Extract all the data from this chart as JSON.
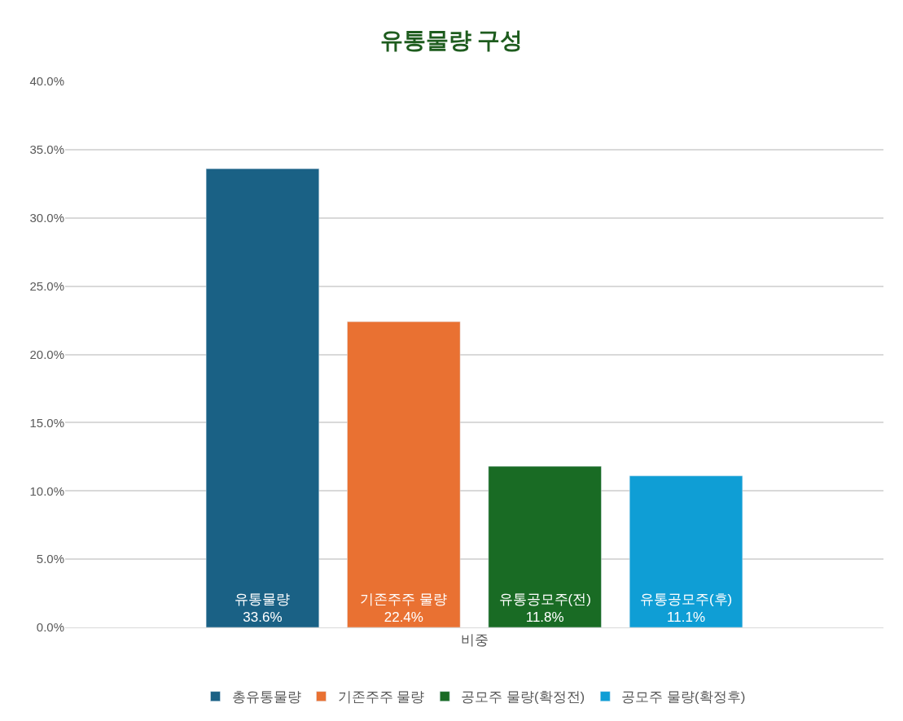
{
  "chart_data": {
    "type": "bar",
    "title": "유통물량 구성",
    "categories": [
      "비중"
    ],
    "series": [
      {
        "name": "총유통물량",
        "color": "#1a6185",
        "values": [
          33.6
        ],
        "value_labels": [
          "유통물량\n33.6%"
        ]
      },
      {
        "name": "기존주주 물량",
        "color": "#e97132",
        "values": [
          22.4
        ],
        "value_labels": [
          "기존주주 물량\n22.4%"
        ]
      },
      {
        "name": "공모주 물량(확정전)",
        "color": "#196b24",
        "values": [
          11.8
        ],
        "value_labels": [
          "유통공모주(전)\n11.8%"
        ]
      },
      {
        "name": "공모주 물량(확정후)",
        "color": "#0f9ed5",
        "values": [
          11.1
        ],
        "value_labels": [
          "유통공모주(후)\n11.1%"
        ]
      }
    ],
    "ylim": [
      0,
      40
    ],
    "yticks": [
      {
        "value": 0,
        "label": "0.0%"
      },
      {
        "value": 5,
        "label": "5.0%"
      },
      {
        "value": 10,
        "label": "10.0%"
      },
      {
        "value": 15,
        "label": "15.0%"
      },
      {
        "value": 20,
        "label": "20.0%"
      },
      {
        "value": 25,
        "label": "25.0%"
      },
      {
        "value": 30,
        "label": "30.0%"
      },
      {
        "value": 35,
        "label": "35.0%"
      },
      {
        "value": 40,
        "label": "40.0%"
      }
    ],
    "grid": "y",
    "legend": "bottom"
  }
}
